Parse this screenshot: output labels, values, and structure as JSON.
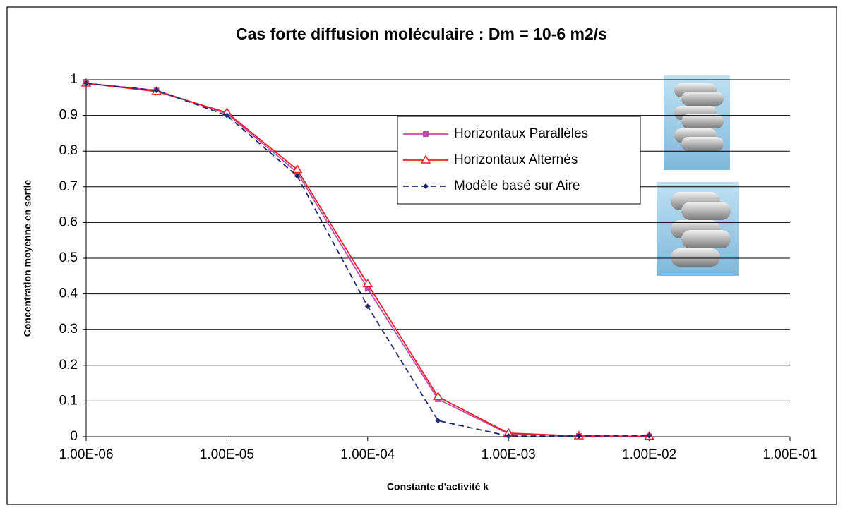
{
  "chart_data": {
    "type": "line",
    "title": "Cas forte diffusion moléculaire : Dm = 10-6 m2/s",
    "x_label": "Constante d'activité k",
    "y_label": "Concentration moyenne en sortie",
    "log_x": true,
    "grid": true,
    "legend": "right",
    "x": [
      1e-06,
      3.16e-06,
      1e-05,
      3.16e-05,
      0.0001,
      0.000316,
      0.001,
      0.00316,
      0.01
    ],
    "series": [
      {
        "name": "Horizontaux Parallèles",
        "color": "#c04fb0",
        "marker": "square",
        "dash": false,
        "values": [
          0.99,
          0.97,
          0.905,
          0.74,
          0.415,
          0.105,
          0.008,
          0.002,
          0.001
        ]
      },
      {
        "name": "Horizontaux Alternés",
        "color": "#e8202a",
        "marker": "triangle",
        "dash": false,
        "values": [
          0.99,
          0.967,
          0.908,
          0.748,
          0.428,
          0.112,
          0.01,
          0.002,
          0.001
        ]
      },
      {
        "name": "Modèle basé sur Aire",
        "color": "#1f2a6e",
        "marker": "diamond",
        "dash": true,
        "values": [
          0.99,
          0.97,
          0.9,
          0.73,
          0.365,
          0.045,
          0.002,
          0.002,
          0.003
        ]
      }
    ],
    "xlim": [
      1e-06,
      0.1
    ],
    "xticks": [
      {
        "value": 1e-06,
        "label": "1.00E-06"
      },
      {
        "value": 1e-05,
        "label": "1.00E-05"
      },
      {
        "value": 0.0001,
        "label": "1.00E-04"
      },
      {
        "value": 0.001,
        "label": "1.00E-03"
      },
      {
        "value": 0.01,
        "label": "1.00E-02"
      },
      {
        "value": 0.1,
        "label": "1.00E-01"
      }
    ],
    "ylim": [
      0,
      1
    ],
    "yticks": [
      0,
      0.1,
      0.2,
      0.3,
      0.4,
      0.5,
      0.6,
      0.7,
      0.8,
      0.9,
      1
    ]
  }
}
